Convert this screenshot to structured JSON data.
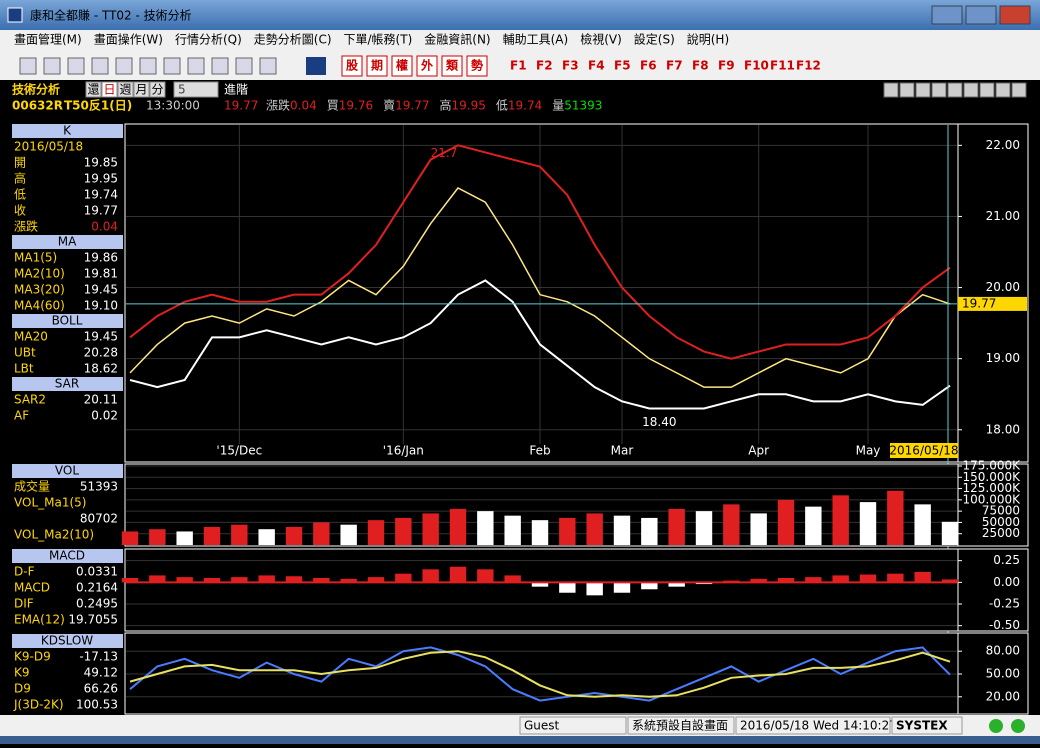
{
  "window": {
    "title": "康和全都賺 - TT02 - 技術分析",
    "menu": [
      "畫面管理(M)",
      "畫面操作(W)",
      "行情分析(Q)",
      "走勢分析圖(C)",
      "下單/帳務(T)",
      "金融資訊(N)",
      "輔助工具(A)",
      "檢視(V)",
      "設定(S)",
      "說明(H)"
    ],
    "quick_buttons": [
      "股",
      "期",
      "權",
      "外",
      "類",
      "勢"
    ],
    "function_keys": [
      "F1",
      "F2",
      "F3",
      "F4",
      "F5",
      "F6",
      "F7",
      "F8",
      "F9",
      "F10",
      "F11",
      "F12"
    ],
    "status": [
      "Guest",
      "系統預設自設畫面",
      "2016/05/18 Wed 14:10:27",
      "SYSTEX"
    ]
  },
  "header": {
    "title": "技術分析",
    "buttons": [
      "還",
      "日",
      "週",
      "月",
      "分"
    ],
    "period": "5",
    "advanced": "進階",
    "code": "00632R",
    "name": "T50反1(日)",
    "time": "13:30:00",
    "price": "19.77",
    "quotes": [
      [
        "漲跌",
        "0.04"
      ],
      [
        "買",
        "19.76"
      ],
      [
        "賣",
        "19.77"
      ],
      [
        "高",
        "19.95"
      ],
      [
        "低",
        "19.74"
      ],
      [
        "量",
        "51393"
      ]
    ]
  },
  "side_panel": [
    {
      "title": "K",
      "date": "2016/05/18",
      "rows": [
        [
          "開",
          "19.85"
        ],
        [
          "高",
          "19.95"
        ],
        [
          "低",
          "19.74"
        ],
        [
          "收",
          "19.77"
        ],
        [
          "漲跌",
          "0.04"
        ]
      ]
    },
    {
      "title": "MA",
      "rows": [
        [
          "MA1(5)",
          "19.86"
        ],
        [
          "MA2(10)",
          "19.81"
        ],
        [
          "MA3(20)",
          "19.45"
        ],
        [
          "MA4(60)",
          "19.10"
        ]
      ]
    },
    {
      "title": "BOLL",
      "rows": [
        [
          "MA20",
          "19.45"
        ],
        [
          "UBt",
          "20.28"
        ],
        [
          "LBt",
          "18.62"
        ]
      ]
    },
    {
      "title": "SAR",
      "rows": [
        [
          "SAR2",
          "20.11"
        ],
        [
          "AF",
          "0.02"
        ]
      ]
    },
    {
      "title": "VOL",
      "rows": [
        [
          "成交量",
          "51393"
        ],
        [
          "VOL_Ma1(5)"
        ],
        [
          null,
          "80702"
        ],
        [
          "VOL_Ma2(10)"
        ]
      ]
    },
    {
      "title": "MACD",
      "rows": [
        [
          "D-F",
          "0.0331"
        ],
        [
          "MACD",
          "0.2164"
        ],
        [
          "DIF",
          "0.2495"
        ],
        [
          "EMA(12)",
          "19.7055"
        ]
      ]
    },
    {
      "title": "KDSLOW",
      "rows": [
        [
          "K9-D9",
          "-17.13"
        ],
        [
          "K9",
          "49.12"
        ],
        [
          "D9",
          "66.26"
        ],
        [
          "J(3D-2K)",
          "100.53"
        ]
      ]
    }
  ],
  "chart_data": [
    {
      "type": "line",
      "categories": [
        null,
        null,
        null,
        null,
        "'15/Dec",
        null,
        null,
        null,
        null,
        null,
        "'16/Jan",
        null,
        null,
        null,
        null,
        "Feb",
        null,
        null,
        "Mar",
        null,
        null,
        null,
        null,
        "Apr",
        null,
        null,
        null,
        "May",
        null,
        null,
        null
      ],
      "series": [
        {
          "name": "收",
          "color": "#ffe680",
          "values": [
            18.8,
            19.2,
            19.5,
            19.6,
            19.5,
            19.7,
            19.6,
            19.8,
            20.1,
            19.9,
            20.3,
            20.9,
            21.4,
            21.2,
            20.6,
            19.9,
            19.8,
            19.6,
            19.3,
            19.0,
            18.8,
            18.6,
            18.6,
            18.8,
            19.0,
            18.9,
            18.8,
            19.0,
            19.6,
            19.9,
            19.77
          ]
        },
        {
          "name": "UBt",
          "color": "#e02020",
          "values": [
            19.3,
            19.6,
            19.8,
            19.9,
            19.8,
            19.8,
            19.9,
            19.9,
            20.2,
            20.6,
            21.2,
            21.8,
            22.0,
            21.9,
            21.8,
            21.7,
            21.3,
            20.6,
            20.0,
            19.6,
            19.3,
            19.1,
            19.0,
            19.1,
            19.2,
            19.2,
            19.2,
            19.3,
            19.6,
            20.0,
            20.28
          ]
        },
        {
          "name": "LBt",
          "color": "#ffffff",
          "values": [
            18.7,
            18.6,
            18.7,
            19.3,
            19.3,
            19.4,
            19.3,
            19.2,
            19.3,
            19.2,
            19.3,
            19.5,
            19.9,
            20.1,
            19.8,
            19.2,
            18.9,
            18.6,
            18.4,
            18.3,
            18.3,
            18.3,
            18.4,
            18.5,
            18.5,
            18.4,
            18.4,
            18.5,
            18.4,
            18.35,
            18.62
          ]
        }
      ],
      "ylim": [
        17.8,
        22.3
      ],
      "yticks": [
        {
          "value": 18,
          "label": "18.00"
        },
        {
          "value": 19,
          "label": "19.00"
        },
        {
          "value": 20,
          "label": "20.00"
        },
        {
          "value": 21,
          "label": "21.00"
        },
        {
          "value": 22,
          "label": "22.00"
        }
      ],
      "grid": true,
      "annotations": [
        "21.7",
        "18.40"
      ],
      "price_tag": 19.77,
      "date_tag": "2016/05/18"
    },
    {
      "type": "bar",
      "series": [
        {
          "name": "成交量",
          "color": "#e02020",
          "values": [
            30000,
            35000,
            30000,
            40000,
            45000,
            35000,
            40000,
            50000,
            45000,
            55000,
            60000,
            70000,
            80000,
            75000,
            65000,
            55000,
            60000,
            70000,
            65000,
            60000,
            80000,
            75000,
            90000,
            70000,
            100000,
            85000,
            110000,
            95000,
            120000,
            90000,
            51393
          ]
        }
      ],
      "ylim": [
        0,
        175000
      ],
      "yticks": [
        25000,
        50000,
        75000,
        {
          "value": 100000,
          "label": "100.000K"
        },
        {
          "value": 125000,
          "label": "125.000K"
        },
        {
          "value": 150000,
          "label": "150.000K"
        },
        {
          "value": 175000,
          "label": "175.000K"
        }
      ],
      "grid": true
    },
    {
      "type": "bar",
      "series": [
        {
          "name": "D-F",
          "color": "#e02020",
          "values": [
            0.05,
            0.08,
            0.06,
            0.05,
            0.06,
            0.08,
            0.07,
            0.05,
            0.04,
            0.06,
            0.1,
            0.15,
            0.18,
            0.15,
            0.08,
            -0.05,
            -0.12,
            -0.15,
            -0.12,
            -0.08,
            -0.05,
            -0.02,
            0.02,
            0.04,
            0.05,
            0.06,
            0.08,
            0.09,
            0.1,
            0.12,
            0.0331
          ]
        }
      ],
      "ylim": [
        -0.55,
        0.35
      ],
      "yticks": [
        {
          "value": 0.25,
          "label": "0.25"
        },
        {
          "value": 0,
          "label": "0.00"
        },
        {
          "value": -0.25,
          "label": "-0.25"
        },
        {
          "value": -0.5,
          "label": "-0.50"
        }
      ],
      "grid": true
    },
    {
      "type": "line",
      "series": [
        {
          "name": "K9",
          "color": "#4a7cff",
          "values": [
            30,
            60,
            70,
            55,
            45,
            65,
            50,
            40,
            70,
            60,
            80,
            85,
            75,
            60,
            30,
            15,
            20,
            25,
            20,
            15,
            30,
            45,
            60,
            40,
            55,
            70,
            50,
            65,
            80,
            85,
            49.12
          ]
        },
        {
          "name": "D9",
          "color": "#e8e060",
          "values": [
            40,
            50,
            60,
            62,
            55,
            55,
            55,
            50,
            55,
            58,
            70,
            78,
            80,
            72,
            55,
            35,
            22,
            20,
            22,
            20,
            22,
            32,
            45,
            48,
            50,
            58,
            58,
            60,
            68,
            78,
            66.26
          ]
        }
      ],
      "ylim": [
        0,
        100
      ],
      "yticks": [
        {
          "value": 20,
          "label": "20.00"
        },
        {
          "value": 50,
          "label": "50.00"
        },
        {
          "value": 80,
          "label": "80.00"
        }
      ],
      "grid": true
    }
  ]
}
